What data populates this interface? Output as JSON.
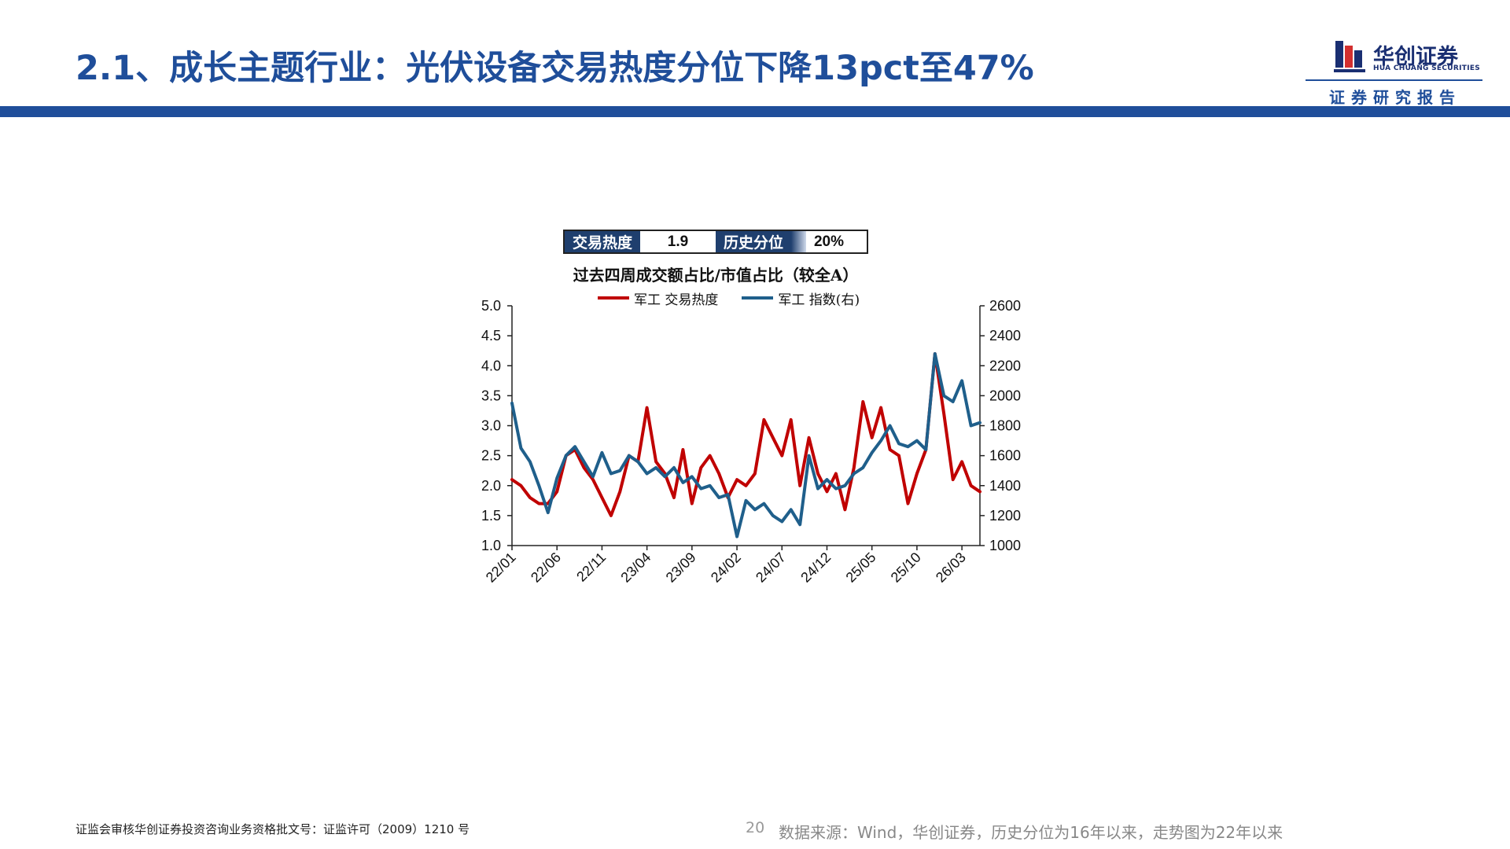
{
  "header": {
    "title": "2.1、成长主题行业：光伏设备交易热度分位下降13pct至47%",
    "logo_cn": "华创证券",
    "logo_en": "HUA CHUANG SECURITIES",
    "report_tag": "证券研究报告",
    "brand_color": "#1f4e9a",
    "logo_accent": "#d32f2f"
  },
  "stats": {
    "heat_label": "交易热度",
    "heat_value": "1.9",
    "percentile_label": "历史分位",
    "percentile_value": "20%",
    "percentile_fraction": 0.2
  },
  "chart_data": {
    "type": "line",
    "title": "过去四周成交额占比/市值占比（较全A）",
    "x_labels": [
      "22/01",
      "22/06",
      "22/11",
      "23/04",
      "23/09",
      "24/02",
      "24/07",
      "24/12",
      "25/05",
      "25/10",
      "26/03"
    ],
    "x_range": [
      "2022-01",
      "2026-05"
    ],
    "y_left": {
      "ticks": [
        "5.0",
        "4.5",
        "4.0",
        "3.5",
        "3.0",
        "2.5",
        "2.0",
        "1.5",
        "1.0"
      ],
      "ylim": [
        1.0,
        5.0
      ]
    },
    "y_right": {
      "ticks": [
        "2600",
        "2400",
        "2200",
        "2000",
        "1800",
        "1600",
        "1400",
        "1200",
        "1000"
      ],
      "ylim": [
        1000,
        2600
      ]
    },
    "grid": false,
    "legend_position": "top",
    "series": [
      {
        "name": "军工 交易热度",
        "axis": "left",
        "color": "#c00000",
        "x": [
          "2022-01",
          "2022-02",
          "2022-03",
          "2022-04",
          "2022-05",
          "2022-06",
          "2022-07",
          "2022-08",
          "2022-09",
          "2022-10",
          "2022-11",
          "2022-12",
          "2023-01",
          "2023-02",
          "2023-03",
          "2023-04",
          "2023-05",
          "2023-06",
          "2023-07",
          "2023-08",
          "2023-09",
          "2023-10",
          "2023-11",
          "2023-12",
          "2024-01",
          "2024-02",
          "2024-03",
          "2024-04",
          "2024-05",
          "2024-06",
          "2024-07",
          "2024-08",
          "2024-09",
          "2024-10",
          "2024-11",
          "2024-12",
          "2025-01",
          "2025-02",
          "2025-03",
          "2025-04",
          "2025-05",
          "2025-06",
          "2025-07",
          "2025-08",
          "2025-09",
          "2025-10",
          "2025-11",
          "2025-12",
          "2026-01",
          "2026-02",
          "2026-03",
          "2026-04",
          "2026-05"
        ],
        "values": [
          2.1,
          2.0,
          1.8,
          1.7,
          1.7,
          1.9,
          2.5,
          2.6,
          2.3,
          2.1,
          1.8,
          1.5,
          1.9,
          2.5,
          2.4,
          3.3,
          2.4,
          2.2,
          1.8,
          2.6,
          1.7,
          2.3,
          2.5,
          2.2,
          1.8,
          2.1,
          2.0,
          2.2,
          3.1,
          2.8,
          2.5,
          3.1,
          2.0,
          2.8,
          2.2,
          1.9,
          2.2,
          1.6,
          2.3,
          3.4,
          2.8,
          3.3,
          2.6,
          2.5,
          1.7,
          2.2,
          2.6,
          4.2,
          3.2,
          2.1,
          2.4,
          2.0,
          1.9
        ]
      },
      {
        "name": "军工 指数(右)",
        "axis": "right",
        "color": "#1f5f8b",
        "x": [
          "2022-01",
          "2022-02",
          "2022-03",
          "2022-04",
          "2022-05",
          "2022-06",
          "2022-07",
          "2022-08",
          "2022-09",
          "2022-10",
          "2022-11",
          "2022-12",
          "2023-01",
          "2023-02",
          "2023-03",
          "2023-04",
          "2023-05",
          "2023-06",
          "2023-07",
          "2023-08",
          "2023-09",
          "2023-10",
          "2023-11",
          "2023-12",
          "2024-01",
          "2024-02",
          "2024-03",
          "2024-04",
          "2024-05",
          "2024-06",
          "2024-07",
          "2024-08",
          "2024-09",
          "2024-10",
          "2024-11",
          "2024-12",
          "2025-01",
          "2025-02",
          "2025-03",
          "2025-04",
          "2025-05",
          "2025-06",
          "2025-07",
          "2025-08",
          "2025-09",
          "2025-10",
          "2025-11",
          "2025-12",
          "2026-01",
          "2026-02",
          "2026-03",
          "2026-04",
          "2026-05"
        ],
        "values": [
          1950,
          1650,
          1560,
          1400,
          1220,
          1450,
          1600,
          1660,
          1560,
          1460,
          1620,
          1480,
          1500,
          1600,
          1560,
          1480,
          1520,
          1460,
          1520,
          1420,
          1460,
          1380,
          1400,
          1320,
          1340,
          1060,
          1300,
          1240,
          1280,
          1200,
          1160,
          1240,
          1140,
          1600,
          1380,
          1440,
          1380,
          1400,
          1480,
          1520,
          1620,
          1700,
          1800,
          1680,
          1660,
          1700,
          1640,
          2280,
          2000,
          1960,
          2100,
          1800,
          1820
        ]
      }
    ]
  },
  "footer": {
    "license": "证监会审核华创证券投资咨询业务资格批文号：证监许可（2009）1210 号",
    "page_number": "20",
    "source": "数据来源：Wind，华创证券，历史分位为16年以来，走势图为22年以来"
  }
}
